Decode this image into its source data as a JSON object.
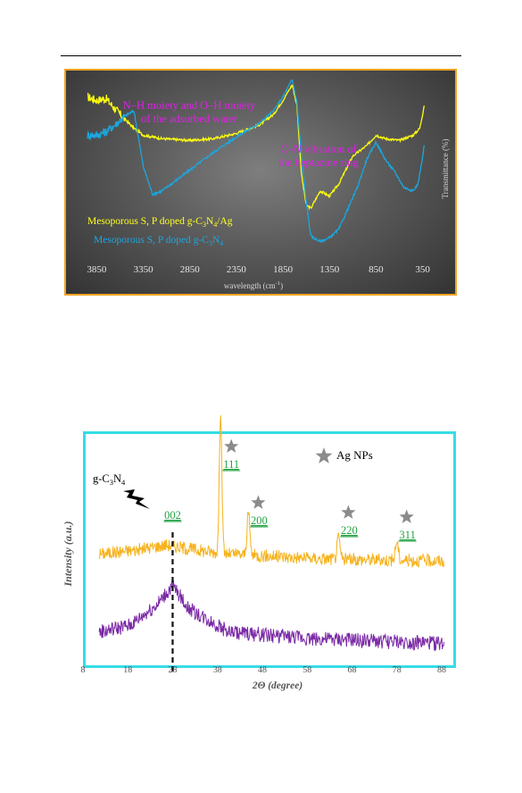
{
  "chart_data": [
    {
      "type": "line",
      "title": "",
      "xlabel": "wavelength (cm-1)",
      "ylabel": "Transmittance (%)",
      "xlim": [
        3950,
        250
      ],
      "x_reversed": true,
      "xticks": [
        "3850",
        "3350",
        "2850",
        "2350",
        "1850",
        "1350",
        "850",
        "350"
      ],
      "grid": false,
      "legend_position": "lower-left",
      "annotations": [
        {
          "lines": [
            "N–H moiety and O–H moiety",
            "of the  adsorbed water"
          ],
          "color": "#e020e8"
        },
        {
          "lines": [
            "C–N vibration of",
            "the heptazine ring"
          ],
          "color": "#e020e8"
        }
      ],
      "series": [
        {
          "name": "Mesoporous S, P doped g-C3N4/Ag",
          "color": "#ffff10",
          "x": [
            3950,
            3850,
            3750,
            3600,
            3450,
            3350,
            3150,
            2850,
            2600,
            2350,
            2100,
            1950,
            1850,
            1750,
            1700,
            1650,
            1600,
            1550,
            1450,
            1350,
            1250,
            1100,
            950,
            850,
            750,
            600,
            450,
            380,
            350,
            330
          ],
          "y": [
            90,
            88,
            89,
            80,
            72,
            68,
            66,
            65,
            66,
            69,
            74,
            80,
            88,
            97,
            85,
            45,
            28,
            26,
            36,
            33,
            40,
            56,
            62,
            68,
            66,
            65,
            68,
            72,
            80,
            86
          ]
        },
        {
          "name": "Mesoporous S, P doped g-C3N4",
          "color": "#1aa7e0",
          "x": [
            3950,
            3850,
            3750,
            3650,
            3550,
            3450,
            3350,
            3250,
            3150,
            2850,
            2600,
            2350,
            2100,
            1950,
            1850,
            1750,
            1700,
            1650,
            1600,
            1550,
            1450,
            1350,
            1250,
            1150,
            1050,
            950,
            850,
            750,
            650,
            550,
            450,
            400,
            350,
            330
          ],
          "y": [
            68,
            68,
            70,
            74,
            79,
            82,
            50,
            34,
            36,
            48,
            58,
            67,
            75,
            82,
            90,
            100,
            87,
            55,
            30,
            10,
            7,
            9,
            14,
            26,
            38,
            54,
            64,
            54,
            47,
            38,
            36,
            40,
            55,
            63
          ]
        }
      ]
    },
    {
      "type": "line",
      "title": "",
      "xlabel": "2Θ (degree)",
      "ylabel": "Intensity (a.u.)",
      "xlim": [
        8,
        90
      ],
      "xticks": [
        "8",
        "18",
        "28",
        "38",
        "48",
        "58",
        "68",
        "78",
        "88"
      ],
      "grid": false,
      "legend_position": "top-right",
      "legend_entries": [
        "Ag NPs"
      ],
      "annotations": [
        {
          "text": "g-C3N4",
          "color": "#000000"
        },
        {
          "text": "002",
          "color": "#21a142"
        },
        {
          "text": "111",
          "color": "#21a142"
        },
        {
          "text": "200",
          "color": "#21a142"
        },
        {
          "text": "220",
          "color": "#21a142"
        },
        {
          "text": "311",
          "color": "#21a142"
        }
      ],
      "peak_positions_2theta": [
        27.4,
        38.1,
        44.3,
        64.4,
        77.4
      ],
      "series": [
        {
          "color": "#f5b31e",
          "description_of_peaks": "broad g-C3N4 hump near 27, sharp Ag peaks at 38.1, 44.3, 64.4, 77.4",
          "baseline": [
            [
              11,
              0.3
            ],
            [
              20,
              0.4
            ],
            [
              26,
              0.5
            ],
            [
              32,
              0.4
            ],
            [
              40,
              0.3
            ],
            [
              60,
              0.2
            ],
            [
              88,
              0.15
            ]
          ],
          "peaks": [
            [
              38.1,
              3.1
            ],
            [
              44.3,
              0.9
            ],
            [
              64.4,
              0.45
            ],
            [
              77.4,
              0.4
            ]
          ]
        },
        {
          "color": "#7b2aa6",
          "description_of_peaks": "broad g-C3N4 hump peaking near 27.4",
          "baseline": [
            [
              11,
              0.35
            ],
            [
              18,
              0.5
            ],
            [
              24,
              0.95
            ],
            [
              27.4,
              1.35
            ],
            [
              31,
              0.85
            ],
            [
              40,
              0.35
            ],
            [
              60,
              0.2
            ],
            [
              88,
              0.1
            ]
          ],
          "peaks": []
        }
      ]
    }
  ]
}
